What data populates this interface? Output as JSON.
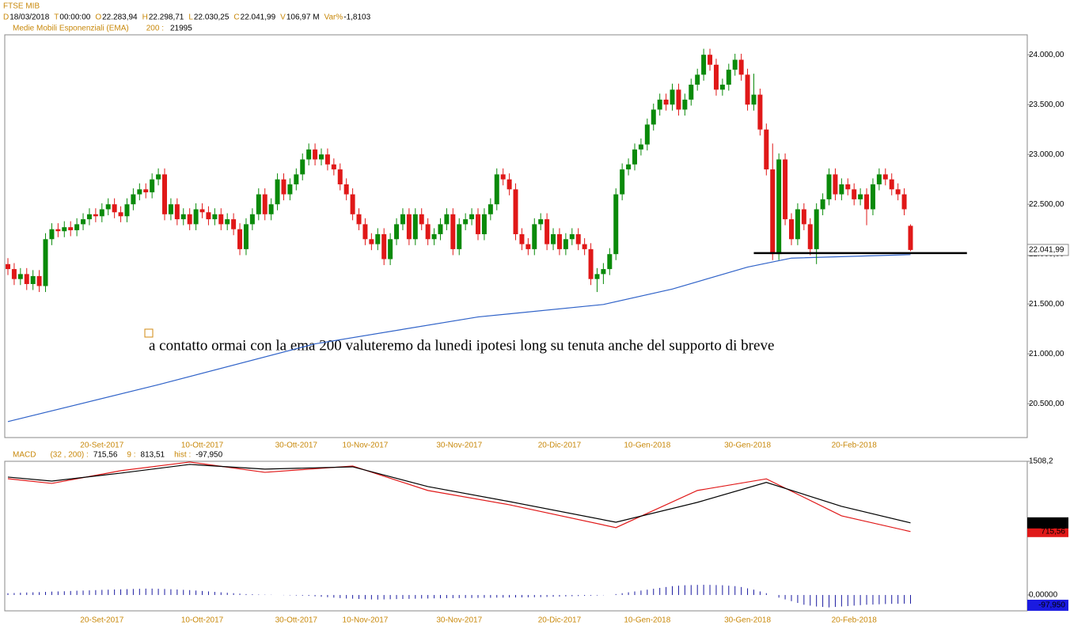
{
  "chart_data": [
    {
      "type": "candlestick",
      "title": "FTSE MIB",
      "header": [
        {
          "k": "D",
          "v": "18/03/2018"
        },
        {
          "k": "T",
          "v": "00:00:00"
        },
        {
          "k": "O",
          "v": "22.283,94"
        },
        {
          "k": "H",
          "v": "22.298,71"
        },
        {
          "k": "L",
          "v": "22.030,25"
        },
        {
          "k": "C",
          "v": "22.041,99"
        },
        {
          "k": "V",
          "v": "106,97 M"
        },
        {
          "k": "Var%",
          "v": "-1,8103"
        }
      ],
      "up_color": "#0a8a0a",
      "down_color": "#e01818",
      "candles": [
        [
          21900,
          21960,
          21790,
          21850
        ],
        [
          21850,
          21910,
          21690,
          21750
        ],
        [
          21750,
          21860,
          21690,
          21800
        ],
        [
          21800,
          21860,
          21640,
          21700
        ],
        [
          21700,
          21840,
          21640,
          21780
        ],
        [
          21780,
          21840,
          21620,
          21680
        ],
        [
          21680,
          22210,
          21620,
          22150
        ],
        [
          22150,
          22310,
          22090,
          22250
        ],
        [
          22250,
          22310,
          22170,
          22230
        ],
        [
          22230,
          22330,
          22170,
          22270
        ],
        [
          22270,
          22330,
          22180,
          22240
        ],
        [
          22240,
          22360,
          22180,
          22300
        ],
        [
          22300,
          22410,
          22240,
          22350
        ],
        [
          22350,
          22460,
          22290,
          22400
        ],
        [
          22400,
          22460,
          22320,
          22380
        ],
        [
          22380,
          22510,
          22320,
          22450
        ],
        [
          22450,
          22560,
          22390,
          22500
        ],
        [
          22500,
          22560,
          22360,
          22420
        ],
        [
          22420,
          22480,
          22320,
          22380
        ],
        [
          22380,
          22560,
          22320,
          22500
        ],
        [
          22500,
          22660,
          22440,
          22600
        ],
        [
          22600,
          22710,
          22540,
          22650
        ],
        [
          22650,
          22710,
          22560,
          22620
        ],
        [
          22620,
          22810,
          22560,
          22750
        ],
        [
          22750,
          22860,
          22690,
          22800
        ],
        [
          22800,
          22860,
          22340,
          22400
        ],
        [
          22400,
          22560,
          22340,
          22500
        ],
        [
          22500,
          22560,
          22290,
          22350
        ],
        [
          22350,
          22460,
          22290,
          22400
        ],
        [
          22400,
          22460,
          22240,
          22300
        ],
        [
          22300,
          22510,
          22240,
          22450
        ],
        [
          22450,
          22510,
          22360,
          22420
        ],
        [
          22420,
          22480,
          22290,
          22350
        ],
        [
          22350,
          22460,
          22290,
          22400
        ],
        [
          22400,
          22460,
          22240,
          22300
        ],
        [
          22300,
          22410,
          22240,
          22350
        ],
        [
          22350,
          22410,
          22190,
          22250
        ],
        [
          22250,
          22310,
          21990,
          22050
        ],
        [
          22050,
          22360,
          21990,
          22300
        ],
        [
          22300,
          22460,
          22240,
          22400
        ],
        [
          22400,
          22660,
          22340,
          22600
        ],
        [
          22600,
          22660,
          22340,
          22400
        ],
        [
          22400,
          22560,
          22340,
          22500
        ],
        [
          22500,
          22810,
          22440,
          22750
        ],
        [
          22750,
          22810,
          22540,
          22600
        ],
        [
          22600,
          22760,
          22540,
          22700
        ],
        [
          22700,
          22860,
          22640,
          22800
        ],
        [
          22800,
          23010,
          22740,
          22950
        ],
        [
          22950,
          23110,
          22890,
          23050
        ],
        [
          23050,
          23110,
          22890,
          22950
        ],
        [
          22950,
          23060,
          22890,
          23000
        ],
        [
          23000,
          23060,
          22840,
          22900
        ],
        [
          22900,
          22960,
          22790,
          22850
        ],
        [
          22850,
          22910,
          22640,
          22700
        ],
        [
          22700,
          22760,
          22540,
          22600
        ],
        [
          22600,
          22660,
          22340,
          22400
        ],
        [
          22400,
          22460,
          22240,
          22300
        ],
        [
          22300,
          22360,
          22090,
          22150
        ],
        [
          22150,
          22210,
          22040,
          22100
        ],
        [
          22100,
          22260,
          22040,
          22200
        ],
        [
          22200,
          22260,
          21890,
          21950
        ],
        [
          21950,
          22210,
          21890,
          22150
        ],
        [
          22150,
          22360,
          22090,
          22300
        ],
        [
          22300,
          22460,
          22240,
          22400
        ],
        [
          22400,
          22460,
          22090,
          22150
        ],
        [
          22150,
          22460,
          22090,
          22400
        ],
        [
          22400,
          22460,
          22240,
          22300
        ],
        [
          22300,
          22360,
          22090,
          22150
        ],
        [
          22150,
          22260,
          22090,
          22200
        ],
        [
          22200,
          22360,
          22140,
          22300
        ],
        [
          22300,
          22460,
          22240,
          22400
        ],
        [
          22400,
          22460,
          21990,
          22050
        ],
        [
          22050,
          22360,
          21990,
          22300
        ],
        [
          22300,
          22410,
          22240,
          22350
        ],
        [
          22350,
          22460,
          22290,
          22400
        ],
        [
          22400,
          22460,
          22140,
          22200
        ],
        [
          22200,
          22460,
          22140,
          22400
        ],
        [
          22400,
          22560,
          22340,
          22500
        ],
        [
          22500,
          22860,
          22440,
          22800
        ],
        [
          22800,
          22860,
          22690,
          22750
        ],
        [
          22750,
          22810,
          22590,
          22650
        ],
        [
          22650,
          22710,
          22140,
          22200
        ],
        [
          22200,
          22260,
          22040,
          22100
        ],
        [
          22100,
          22160,
          21990,
          22050
        ],
        [
          22050,
          22360,
          21990,
          22300
        ],
        [
          22300,
          22410,
          22240,
          22350
        ],
        [
          22350,
          22410,
          22040,
          22100
        ],
        [
          22100,
          22260,
          22040,
          22200
        ],
        [
          22200,
          22260,
          21990,
          22050
        ],
        [
          22050,
          22210,
          21990,
          22150
        ],
        [
          22150,
          22260,
          22090,
          22200
        ],
        [
          22200,
          22260,
          22040,
          22100
        ],
        [
          22100,
          22160,
          21990,
          22050
        ],
        [
          22050,
          22110,
          21690,
          21750
        ],
        [
          21750,
          21860,
          21620,
          21800
        ],
        [
          21800,
          21910,
          21700,
          21850
        ],
        [
          21850,
          22060,
          21790,
          22000
        ],
        [
          22000,
          22660,
          21940,
          22600
        ],
        [
          22600,
          22910,
          22540,
          22850
        ],
        [
          22850,
          22960,
          22790,
          22900
        ],
        [
          22900,
          23110,
          22840,
          23050
        ],
        [
          23050,
          23160,
          22990,
          23100
        ],
        [
          23100,
          23360,
          23040,
          23300
        ],
        [
          23300,
          23510,
          23240,
          23450
        ],
        [
          23450,
          23610,
          23390,
          23550
        ],
        [
          23550,
          23610,
          23440,
          23500
        ],
        [
          23500,
          23710,
          23440,
          23650
        ],
        [
          23650,
          23710,
          23390,
          23450
        ],
        [
          23450,
          23610,
          23390,
          23550
        ],
        [
          23550,
          23760,
          23490,
          23700
        ],
        [
          23700,
          23860,
          23640,
          23800
        ],
        [
          23800,
          24060,
          23740,
          24000
        ],
        [
          24000,
          24060,
          23840,
          23900
        ],
        [
          23900,
          23960,
          23590,
          23650
        ],
        [
          23650,
          23760,
          23590,
          23700
        ],
        [
          23700,
          23910,
          23640,
          23850
        ],
        [
          23850,
          24010,
          23790,
          23950
        ],
        [
          23950,
          24010,
          23740,
          23800
        ],
        [
          23800,
          23860,
          23440,
          23500
        ],
        [
          23500,
          23810,
          23440,
          23600
        ],
        [
          23600,
          23660,
          23190,
          23250
        ],
        [
          23250,
          23310,
          22790,
          22850
        ],
        [
          22850,
          23110,
          21940,
          22000
        ],
        [
          22000,
          23010,
          21940,
          22950
        ],
        [
          22950,
          23010,
          22290,
          22350
        ],
        [
          22350,
          22410,
          22090,
          22150
        ],
        [
          22150,
          22510,
          22090,
          22450
        ],
        [
          22450,
          22510,
          22240,
          22300
        ],
        [
          22300,
          22360,
          21990,
          22050
        ],
        [
          22050,
          22510,
          21900,
          22450
        ],
        [
          22450,
          22610,
          22390,
          22550
        ],
        [
          22550,
          22860,
          22490,
          22800
        ],
        [
          22800,
          22860,
          22540,
          22600
        ],
        [
          22600,
          22760,
          22540,
          22700
        ],
        [
          22700,
          22760,
          22590,
          22650
        ],
        [
          22650,
          22710,
          22490,
          22550
        ],
        [
          22550,
          22660,
          22490,
          22600
        ],
        [
          22600,
          22660,
          22290,
          22450
        ],
        [
          22450,
          22760,
          22390,
          22700
        ],
        [
          22700,
          22860,
          22640,
          22800
        ],
        [
          22800,
          22860,
          22690,
          22750
        ],
        [
          22750,
          22810,
          22590,
          22650
        ],
        [
          22650,
          22710,
          22540,
          22600
        ],
        [
          22600,
          22660,
          22390,
          22450
        ],
        [
          22283.94,
          22298.71,
          22030.25,
          22041.99
        ]
      ],
      "ema": {
        "name": "Medie Mobili Esponenziali (EMA)",
        "period": "200 :",
        "last": "21995",
        "color": "#2f62c8",
        "x": [
          0,
          24,
          49,
          75,
          95,
          106,
          118,
          125,
          144
        ],
        "values": [
          20320,
          20690,
          21100,
          21370,
          21495,
          21650,
          21870,
          21960,
          21995
        ]
      },
      "ylim": [
        20160,
        24200
      ],
      "yticks": [
        {
          "value": 20500,
          "label": "20.500,00"
        },
        {
          "value": 21000,
          "label": "21.000,00"
        },
        {
          "value": 21500,
          "label": "21.500,00"
        },
        {
          "value": 22000,
          "label": "22.000,00"
        },
        {
          "value": 22500,
          "label": "22.500,00"
        },
        {
          "value": 23000,
          "label": "23.000,00"
        },
        {
          "value": 23500,
          "label": "23.500,00"
        },
        {
          "value": 24000,
          "label": "24.000,00"
        }
      ],
      "last_label": "22.041,99",
      "date_ticks": [
        {
          "index": 15,
          "label": "20-Set-2017"
        },
        {
          "index": 31,
          "label": "10-Ott-2017"
        },
        {
          "index": 46,
          "label": "30-Ott-2017"
        },
        {
          "index": 57,
          "label": "10-Nov-2017"
        },
        {
          "index": 72,
          "label": "30-Nov-2017"
        },
        {
          "index": 88,
          "label": "20-Dic-2017"
        },
        {
          "index": 102,
          "label": "10-Gen-2018"
        },
        {
          "index": 118,
          "label": "30-Gen-2018"
        },
        {
          "index": 135,
          "label": "20-Feb-2018"
        }
      ],
      "support": {
        "value": 22010,
        "from": 119,
        "to": 153
      },
      "annotation": "a contatto ormai con la ema 200 valuteremo da lunedi ipotesi long su tenuta anche del supporto di breve"
    },
    {
      "type": "macd",
      "title": "MACD",
      "series": [
        {
          "name": "(32 , 200) :",
          "color": "#e01818",
          "value_label": "715,56",
          "x": [
            0,
            7,
            18,
            29,
            41,
            55,
            67,
            80,
            97,
            110,
            121,
            133,
            144
          ],
          "values": [
            1312,
            1259,
            1402,
            1500,
            1384,
            1455,
            1179,
            1018,
            760,
            1179,
            1310,
            893,
            715.56
          ]
        },
        {
          "name": "9 :",
          "color": "#000000",
          "value_label": "813,51",
          "x": [
            0,
            7,
            18,
            29,
            41,
            55,
            67,
            80,
            97,
            110,
            121,
            133,
            144
          ],
          "values": [
            1330,
            1285,
            1375,
            1473,
            1420,
            1446,
            1223,
            1054,
            821,
            1045,
            1270,
            1000,
            813.51
          ]
        }
      ],
      "hist": {
        "name": "hist :",
        "color": "#1a1aa0",
        "value_label": "-97,950",
        "values": [
          20,
          22,
          25,
          28,
          30,
          32,
          35,
          38,
          40,
          42,
          45,
          48,
          50,
          52,
          55,
          58,
          60,
          62,
          64,
          66,
          68,
          70,
          72,
          72,
          70,
          68,
          65,
          62,
          58,
          55,
          50,
          45,
          40,
          35,
          30,
          25,
          20,
          15,
          10,
          8,
          5,
          3,
          2,
          0,
          -2,
          -4,
          -6,
          -8,
          -10,
          -15,
          -20,
          -25,
          -30,
          -35,
          -40,
          -42,
          -45,
          -48,
          -50,
          -52,
          -50,
          -48,
          -46,
          -45,
          -44,
          -42,
          -40,
          -40,
          -38,
          -38,
          -36,
          -36,
          -35,
          -34,
          -34,
          -33,
          -32,
          -32,
          -30,
          -30,
          -28,
          -28,
          -27,
          -26,
          -25,
          -24,
          -22,
          -20,
          -18,
          -16,
          -14,
          -12,
          -10,
          -8,
          -6,
          -3,
          0,
          10,
          20,
          30,
          40,
          50,
          60,
          70,
          80,
          90,
          100,
          105,
          110,
          112,
          114,
          115,
          114,
          112,
          110,
          105,
          100,
          90,
          75,
          60,
          40,
          20,
          0,
          -30,
          -50,
          -70,
          -90,
          -110,
          -120,
          -130,
          -135,
          -140,
          -135,
          -130,
          -125,
          -120,
          -115,
          -110,
          -108,
          -105,
          -102,
          -100,
          -99,
          -98,
          -97.95
        ]
      },
      "ylim": [
        -179,
        1508.2
      ],
      "yticks": [
        {
          "value": 1508.2,
          "label": "1508,2"
        },
        {
          "value": 0,
          "label": "0,00000"
        }
      ]
    }
  ]
}
